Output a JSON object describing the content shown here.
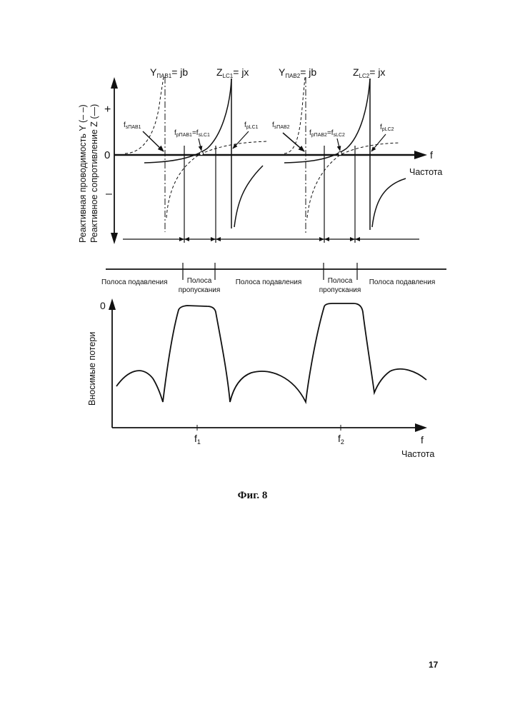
{
  "top_plot": {
    "y_axis_label_1": "Реактивная проводимость Y",
    "y_axis_label_1_legend": "(– –)",
    "y_axis_label_2": "Реактивное сопротивление Z",
    "y_axis_label_2_legend": "(—)",
    "plus_sign": "+",
    "zero_sign": "0",
    "minus_sign": "–",
    "x_axis_f": "f",
    "x_axis_label": "Частота",
    "labels": {
      "y1_main": "Y",
      "y1_sub": "ПАВ1",
      "y1_eq": "= jb",
      "z1_main": "Z",
      "z1_sub": "LC1",
      "z1_eq": "= jx",
      "y2_main": "Y",
      "y2_sub": "ПАВ2",
      "y2_eq": "= jb",
      "z2_main": "Z",
      "z2_sub": "LC2",
      "z2_eq": "= jx",
      "fs1_main": "f",
      "fs1_sub": "sПАВ1",
      "fp1_main": "f",
      "fp1_sub": "pПАВ1",
      "fp1_eq": "=f",
      "fp1_sub2": "sLC1",
      "fpLC1_main": "f",
      "fpLC1_sub": "pLC1",
      "fs2_main": "f",
      "fs2_sub": "sПАВ2",
      "fp2_main": "f",
      "fp2_sub": "pПАВ2",
      "fp2_eq": "=f",
      "fp2_sub2": "sLC2",
      "fpLC2_main": "f",
      "fpLC2_sub": "pLC2"
    }
  },
  "bands": {
    "stop_1": "Полоса подавления",
    "pass_1_line1": "Полоса",
    "pass_1_line2": "пропускания",
    "stop_2": "Полоса подавления",
    "pass_2_line1": "Полоса",
    "pass_2_line2": "пропускания",
    "stop_3": "Полоса подавления"
  },
  "bottom_plot": {
    "y_axis_label": "Вносимые потери",
    "zero_sign": "0",
    "x_axis_f": "f",
    "x_axis_label": "Частота",
    "tick_f1_main": "f",
    "tick_f1_sub": "1",
    "tick_f2_main": "f",
    "tick_f2_sub": "2"
  },
  "caption": "Фиг. 8",
  "page_number": "17"
}
